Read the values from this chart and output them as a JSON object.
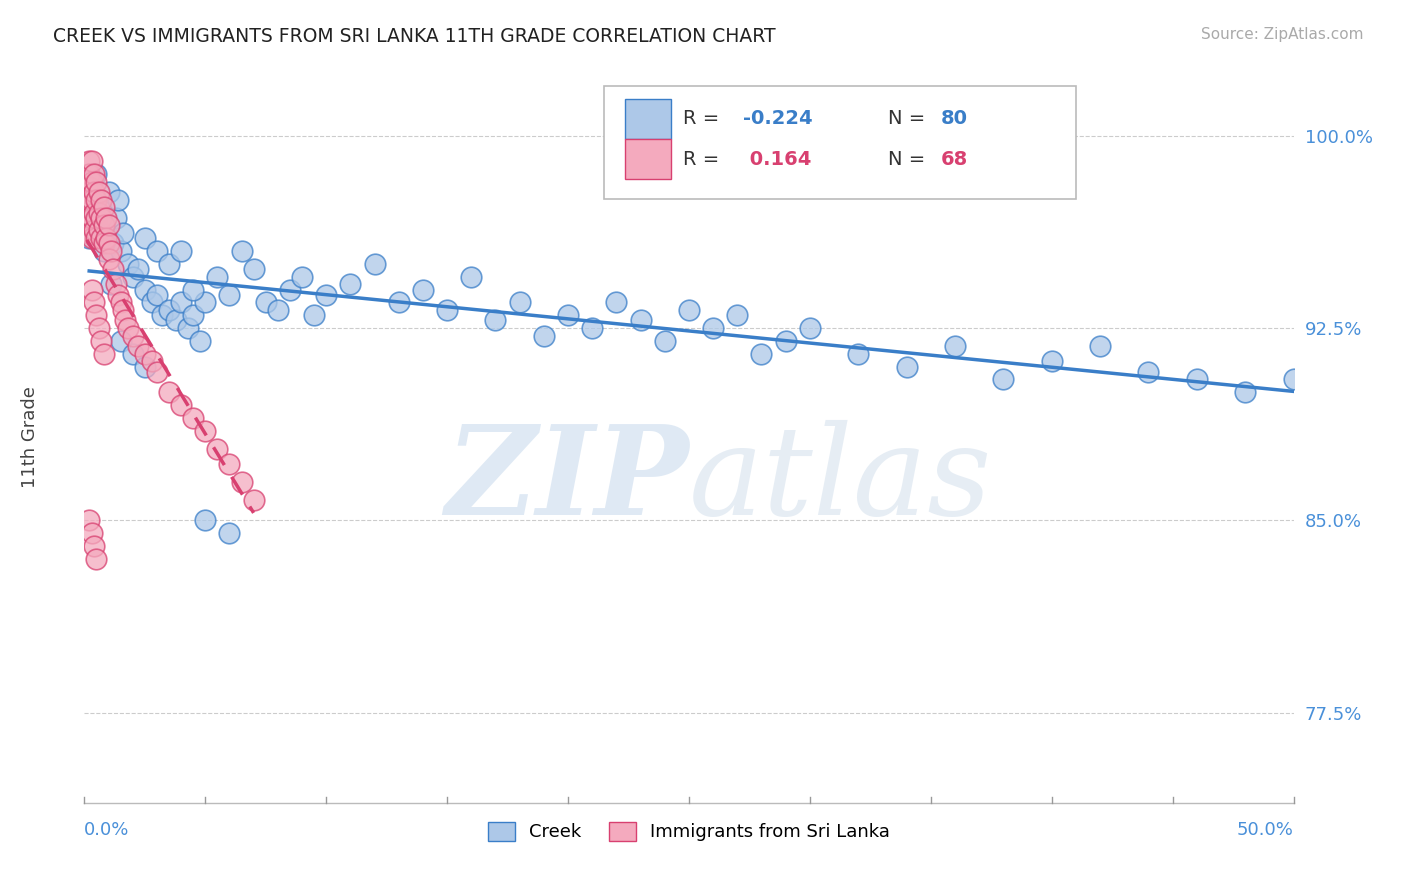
{
  "title": "CREEK VS IMMIGRANTS FROM SRI LANKA 11TH GRADE CORRELATION CHART",
  "source_text": "Source: ZipAtlas.com",
  "ylabel": "11th Grade",
  "xlim": [
    0.0,
    0.5
  ],
  "ylim": [
    0.74,
    1.025
  ],
  "yticks": [
    0.775,
    0.85,
    0.925,
    1.0
  ],
  "ytick_labels": [
    "77.5%",
    "85.0%",
    "92.5%",
    "100.0%"
  ],
  "watermark": "ZIPatlas",
  "blue_color": "#adc8e8",
  "pink_color": "#f4aabe",
  "blue_line_color": "#3a7ec8",
  "pink_line_color": "#d84070",
  "pink_line_dash": [
    6,
    4
  ],
  "background_color": "#ffffff",
  "title_fontsize": 14,
  "axis_label_color": "#4a90d9",
  "creek_x": [
    0.002,
    0.003,
    0.003,
    0.004,
    0.005,
    0.006,
    0.007,
    0.008,
    0.009,
    0.01,
    0.011,
    0.012,
    0.013,
    0.014,
    0.015,
    0.016,
    0.018,
    0.02,
    0.022,
    0.025,
    0.028,
    0.03,
    0.032,
    0.035,
    0.038,
    0.04,
    0.043,
    0.045,
    0.048,
    0.05,
    0.055,
    0.06,
    0.065,
    0.07,
    0.075,
    0.08,
    0.085,
    0.09,
    0.095,
    0.1,
    0.11,
    0.12,
    0.13,
    0.14,
    0.15,
    0.16,
    0.17,
    0.18,
    0.19,
    0.2,
    0.21,
    0.22,
    0.23,
    0.24,
    0.25,
    0.26,
    0.27,
    0.28,
    0.29,
    0.3,
    0.32,
    0.34,
    0.36,
    0.38,
    0.4,
    0.42,
    0.44,
    0.46,
    0.48,
    0.5,
    0.025,
    0.03,
    0.035,
    0.04,
    0.045,
    0.015,
    0.02,
    0.025,
    0.05,
    0.06
  ],
  "creek_y": [
    0.96,
    0.975,
    0.965,
    0.97,
    0.985,
    0.968,
    0.972,
    0.955,
    0.962,
    0.978,
    0.942,
    0.958,
    0.968,
    0.975,
    0.955,
    0.962,
    0.95,
    0.945,
    0.948,
    0.94,
    0.935,
    0.938,
    0.93,
    0.932,
    0.928,
    0.935,
    0.925,
    0.93,
    0.92,
    0.935,
    0.945,
    0.938,
    0.955,
    0.948,
    0.935,
    0.932,
    0.94,
    0.945,
    0.93,
    0.938,
    0.942,
    0.95,
    0.935,
    0.94,
    0.932,
    0.945,
    0.928,
    0.935,
    0.922,
    0.93,
    0.925,
    0.935,
    0.928,
    0.92,
    0.932,
    0.925,
    0.93,
    0.915,
    0.92,
    0.925,
    0.915,
    0.91,
    0.918,
    0.905,
    0.912,
    0.918,
    0.908,
    0.905,
    0.9,
    0.905,
    0.96,
    0.955,
    0.95,
    0.955,
    0.94,
    0.92,
    0.915,
    0.91,
    0.85,
    0.845
  ],
  "sri_lanka_x": [
    0.001,
    0.001,
    0.001,
    0.001,
    0.002,
    0.002,
    0.002,
    0.002,
    0.002,
    0.002,
    0.003,
    0.003,
    0.003,
    0.003,
    0.003,
    0.004,
    0.004,
    0.004,
    0.004,
    0.005,
    0.005,
    0.005,
    0.005,
    0.006,
    0.006,
    0.006,
    0.007,
    0.007,
    0.007,
    0.008,
    0.008,
    0.008,
    0.009,
    0.009,
    0.01,
    0.01,
    0.01,
    0.011,
    0.012,
    0.013,
    0.014,
    0.015,
    0.016,
    0.017,
    0.018,
    0.02,
    0.022,
    0.025,
    0.028,
    0.03,
    0.035,
    0.04,
    0.045,
    0.05,
    0.055,
    0.06,
    0.065,
    0.07,
    0.003,
    0.004,
    0.005,
    0.006,
    0.007,
    0.008,
    0.002,
    0.003,
    0.004,
    0.005
  ],
  "sri_lanka_y": [
    0.98,
    0.975,
    0.97,
    0.965,
    0.99,
    0.985,
    0.98,
    0.975,
    0.968,
    0.962,
    0.99,
    0.982,
    0.975,
    0.968,
    0.96,
    0.985,
    0.978,
    0.97,
    0.963,
    0.982,
    0.975,
    0.968,
    0.96,
    0.978,
    0.97,
    0.963,
    0.975,
    0.968,
    0.96,
    0.972,
    0.965,
    0.958,
    0.968,
    0.96,
    0.965,
    0.958,
    0.952,
    0.955,
    0.948,
    0.942,
    0.938,
    0.935,
    0.932,
    0.928,
    0.925,
    0.922,
    0.918,
    0.915,
    0.912,
    0.908,
    0.9,
    0.895,
    0.89,
    0.885,
    0.878,
    0.872,
    0.865,
    0.858,
    0.94,
    0.935,
    0.93,
    0.925,
    0.92,
    0.915,
    0.85,
    0.845,
    0.84,
    0.835
  ]
}
